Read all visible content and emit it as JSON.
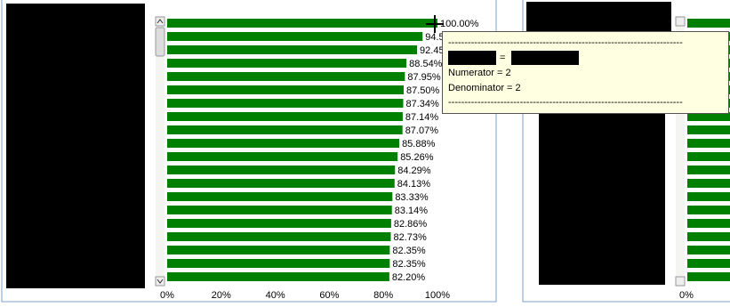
{
  "chart_data": {
    "type": "bar",
    "orientation": "horizontal",
    "color": "#008000",
    "values": [
      100.0,
      94.5,
      92.45,
      88.54,
      87.95,
      87.5,
      87.34,
      87.14,
      87.07,
      85.88,
      85.26,
      84.29,
      84.13,
      83.33,
      83.14,
      82.86,
      82.73,
      82.35,
      82.35,
      82.2
    ],
    "value_labels": [
      "100.00%",
      "94.50%",
      "92.45%",
      "88.54%",
      "87.95%",
      "87.50%",
      "87.34%",
      "87.14%",
      "87.07%",
      "85.88%",
      "85.26%",
      "84.29%",
      "84.13%",
      "83.33%",
      "83.14%",
      "82.86%",
      "82.73%",
      "82.35%",
      "82.35%",
      "82.20%"
    ],
    "xlim": [
      0,
      100
    ],
    "xticks": [
      {
        "value": 0,
        "label": "0%"
      },
      {
        "value": 20,
        "label": "20%"
      },
      {
        "value": 40,
        "label": "40%"
      },
      {
        "value": 60,
        "label": "60%"
      },
      {
        "value": 80,
        "label": "80%"
      },
      {
        "value": 100,
        "label": "100%"
      }
    ],
    "second_panel_axis_label": "0%"
  },
  "tooltip": {
    "separator": "------------------------------------------------------------------------",
    "equals": "=",
    "numerator": "Numerator = 2",
    "denominator": "Denominator = 2"
  }
}
